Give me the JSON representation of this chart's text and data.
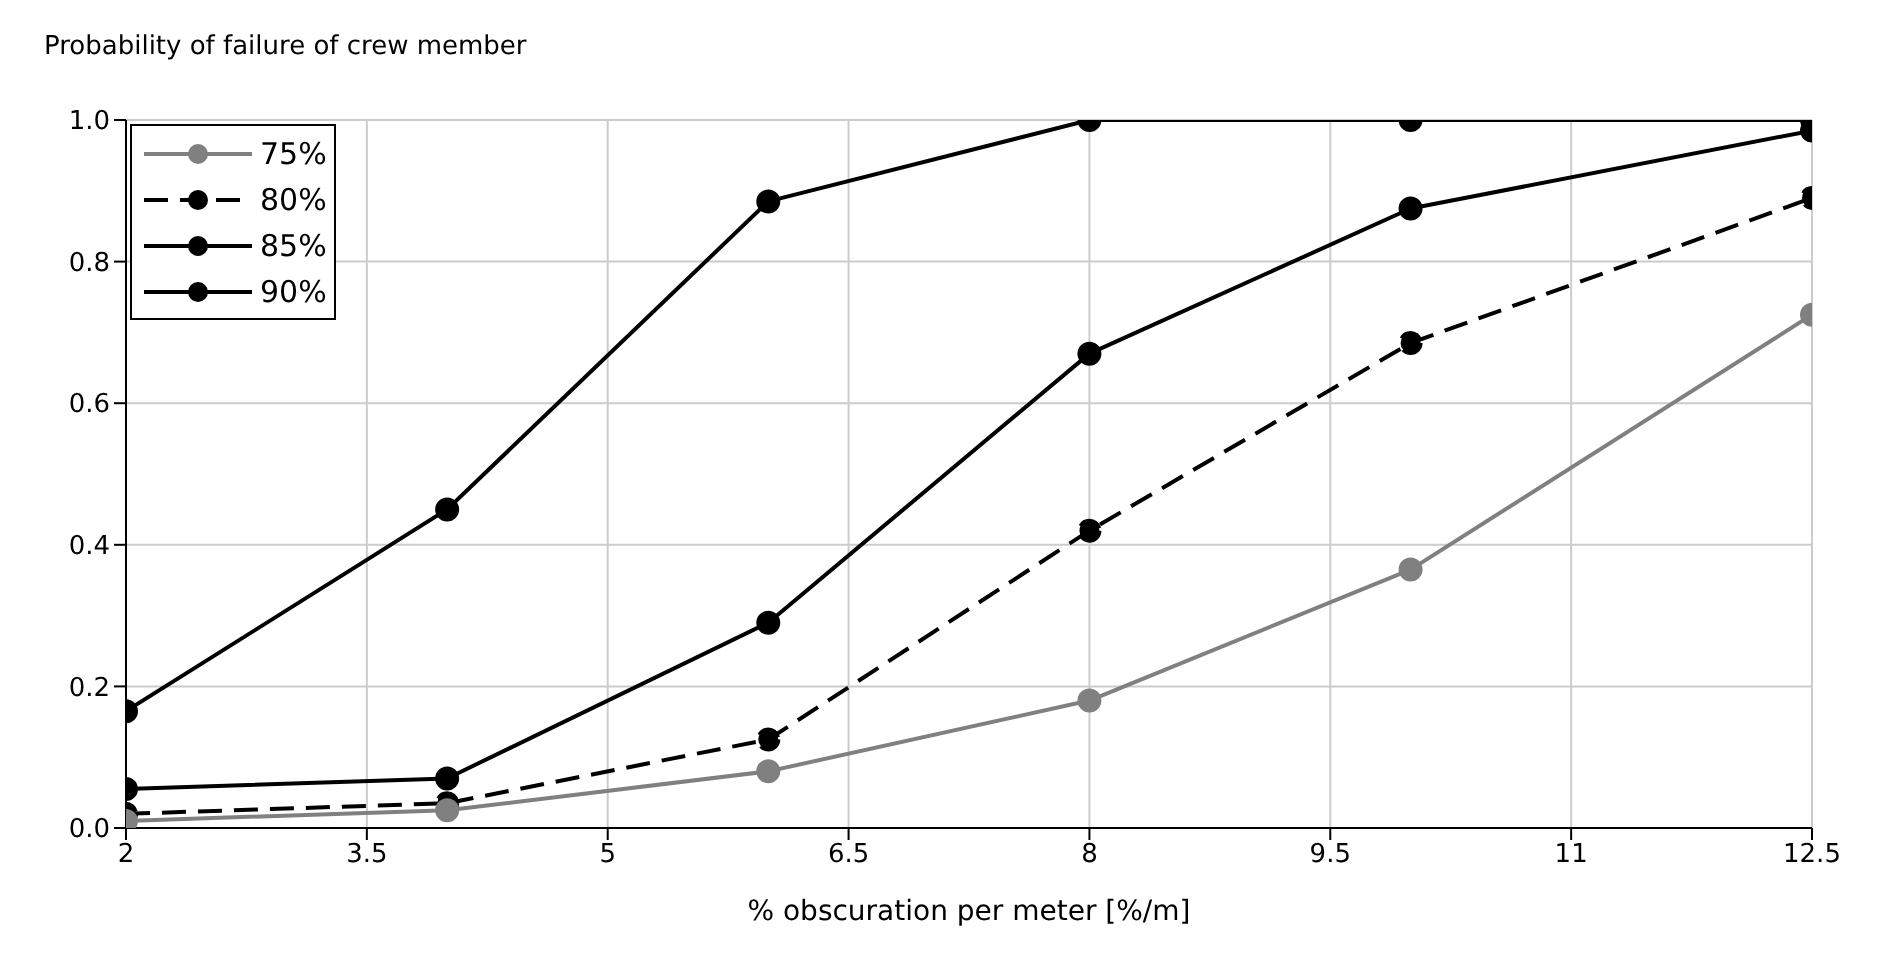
{
  "chart_data": {
    "type": "line",
    "ylabel": "Probability of failure of crew member",
    "xlabel": "% obscuration per meter [%/m]",
    "x": [
      2,
      4,
      6,
      8,
      10,
      12.5
    ],
    "series": [
      {
        "name": "75%",
        "color": "#808080",
        "line_style": "solid",
        "values": [
          0.01,
          0.025,
          0.08,
          0.18,
          0.365,
          0.725
        ]
      },
      {
        "name": "80%",
        "color": "#000000",
        "line_style": "dashed",
        "values": [
          0.02,
          0.035,
          0.125,
          0.42,
          0.685,
          0.89
        ]
      },
      {
        "name": "85%",
        "color": "#000000",
        "line_style": "solid",
        "values": [
          0.055,
          0.07,
          0.29,
          0.67,
          0.875,
          0.985
        ]
      },
      {
        "name": "90%",
        "color": "#000000",
        "line_style": "solid",
        "values": [
          0.165,
          0.45,
          0.885,
          1,
          1,
          1
        ]
      }
    ],
    "xlim": [
      2,
      12.5
    ],
    "xticks": [
      2,
      3.5,
      5,
      6.5,
      8,
      9.5,
      11,
      12.5
    ],
    "ylim": [
      0,
      1
    ],
    "yticks": [
      {
        "value": 0,
        "label": "0.0"
      },
      {
        "value": 0.2,
        "label": "0.2"
      },
      {
        "value": 0.4,
        "label": "0.4"
      },
      {
        "value": 0.6,
        "label": "0.6"
      },
      {
        "value": 0.8,
        "label": "0.8"
      },
      {
        "value": 1,
        "label": "1.0"
      }
    ],
    "grid": true,
    "legend": "top left",
    "marker": "circle"
  }
}
